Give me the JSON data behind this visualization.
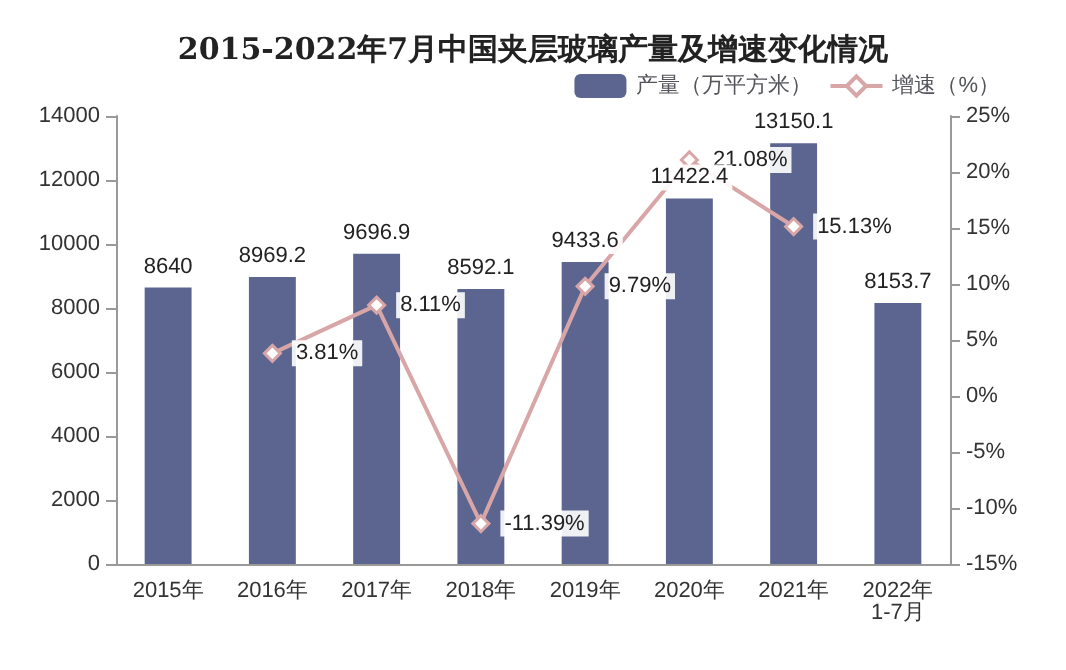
{
  "chart_data": {
    "type": "bar",
    "title": "2015-2022年7月中国夹层玻璃产量及增速变化情况",
    "categories": [
      "2015年",
      "2016年",
      "2017年",
      "2018年",
      "2019年",
      "2020年",
      "2021年",
      "2022年\n1-7月"
    ],
    "series": [
      {
        "name": "产量（万平方米）",
        "color": "#5b6590",
        "values": [
          8640,
          8969.2,
          9696.9,
          8592.1,
          9433.6,
          11422.4,
          13150.1,
          8153.7
        ]
      },
      {
        "name": "增速（%）",
        "type": "line",
        "axis": "y2",
        "color": "#d9a6a8",
        "values": [
          null,
          3.81,
          8.11,
          -11.39,
          9.79,
          21.08,
          15.13,
          null
        ],
        "value_labels": [
          null,
          "3.81%",
          "8.11%",
          "-11.39%",
          "9.79%",
          "21.08%",
          "15.13%",
          null
        ]
      }
    ],
    "ylim": [
      0,
      14000
    ],
    "yticks": [
      0,
      2000,
      4000,
      6000,
      8000,
      10000,
      12000,
      14000
    ],
    "y2lim": [
      -15,
      25
    ],
    "y2ticks": [
      {
        "value": -15,
        "label": "-15%"
      },
      {
        "value": -10,
        "label": "-10%"
      },
      {
        "value": -5,
        "label": "-5%"
      },
      {
        "value": 0,
        "label": "0%"
      },
      {
        "value": 5,
        "label": "5%"
      },
      {
        "value": 10,
        "label": "10%"
      },
      {
        "value": 15,
        "label": "15%"
      },
      {
        "value": 20,
        "label": "20%"
      },
      {
        "value": 25,
        "label": "25%"
      }
    ],
    "data_labels": true,
    "marker": "diamond",
    "legend": "top right",
    "grid": false
  }
}
